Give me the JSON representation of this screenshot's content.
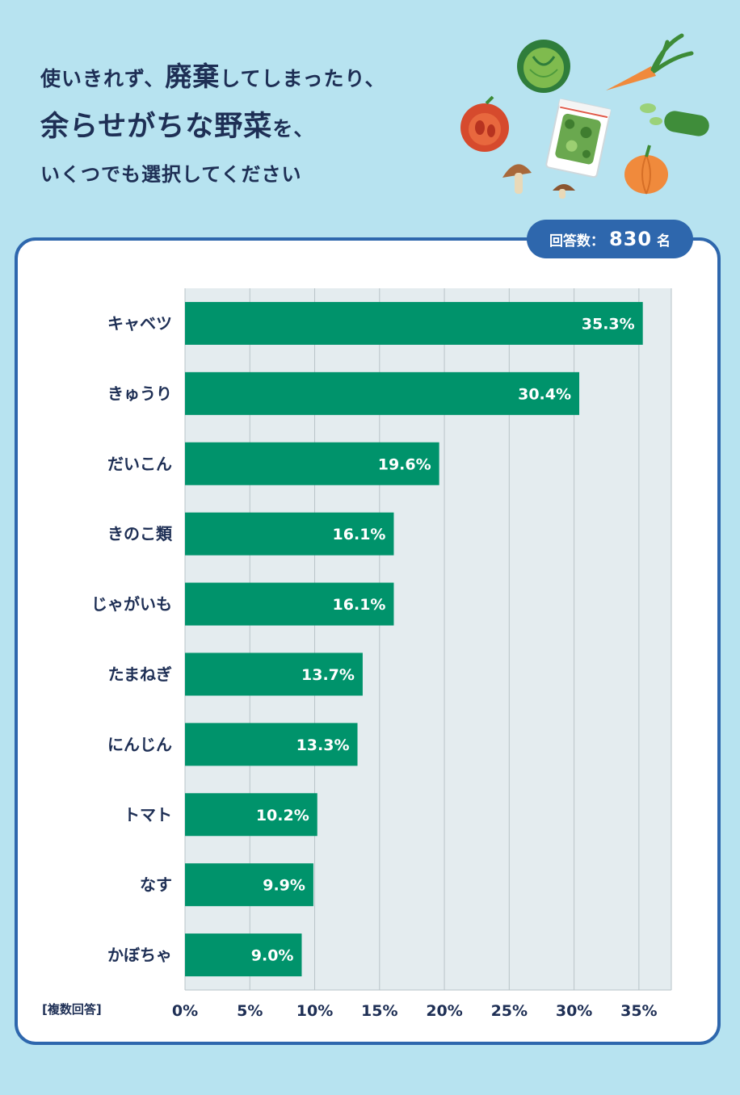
{
  "header": {
    "line1_a": "使いきれず、",
    "line1_b": "廃棄",
    "line1_c": "してしまったり、",
    "line2_a": "余らせがちな野菜",
    "line2_b": "を、",
    "line3": "いくつでも選択してください"
  },
  "badge": {
    "label": "回答数：",
    "count": "830",
    "unit": "名"
  },
  "note": "[複数回答]",
  "colors": {
    "bar": "#00936b",
    "plot_bg": "#e4ecef",
    "grid": "#b9c4c8",
    "text": "#1e2f55",
    "accent": "#2e67ad"
  },
  "illustration_icons": [
    "cabbage-icon",
    "carrot-icon",
    "tomato-icon",
    "frozen-vegetable-bag-icon",
    "cucumber-icon",
    "mushroom-icon",
    "pumpkin-icon"
  ],
  "chart_data": {
    "type": "bar",
    "orientation": "horizontal",
    "categories": [
      "キャベツ",
      "きゅうり",
      "だいこん",
      "きのこ類",
      "じゃがいも",
      "たまねぎ",
      "にんじん",
      "トマト",
      "なす",
      "かぼちゃ"
    ],
    "values": [
      35.3,
      30.4,
      19.6,
      16.1,
      16.1,
      13.7,
      13.3,
      10.2,
      9.9,
      9.0
    ],
    "value_labels": [
      "35.3%",
      "30.4%",
      "19.6%",
      "16.1%",
      "16.1%",
      "13.7%",
      "13.3%",
      "10.2%",
      "9.9%",
      "9.0%"
    ],
    "x_ticks": [
      0,
      5,
      10,
      15,
      20,
      25,
      30,
      35
    ],
    "x_tick_labels": [
      "0%",
      "5%",
      "10%",
      "15%",
      "20%",
      "25%",
      "30%",
      "35%"
    ],
    "xlim": [
      0,
      37.5
    ],
    "grid": true
  }
}
